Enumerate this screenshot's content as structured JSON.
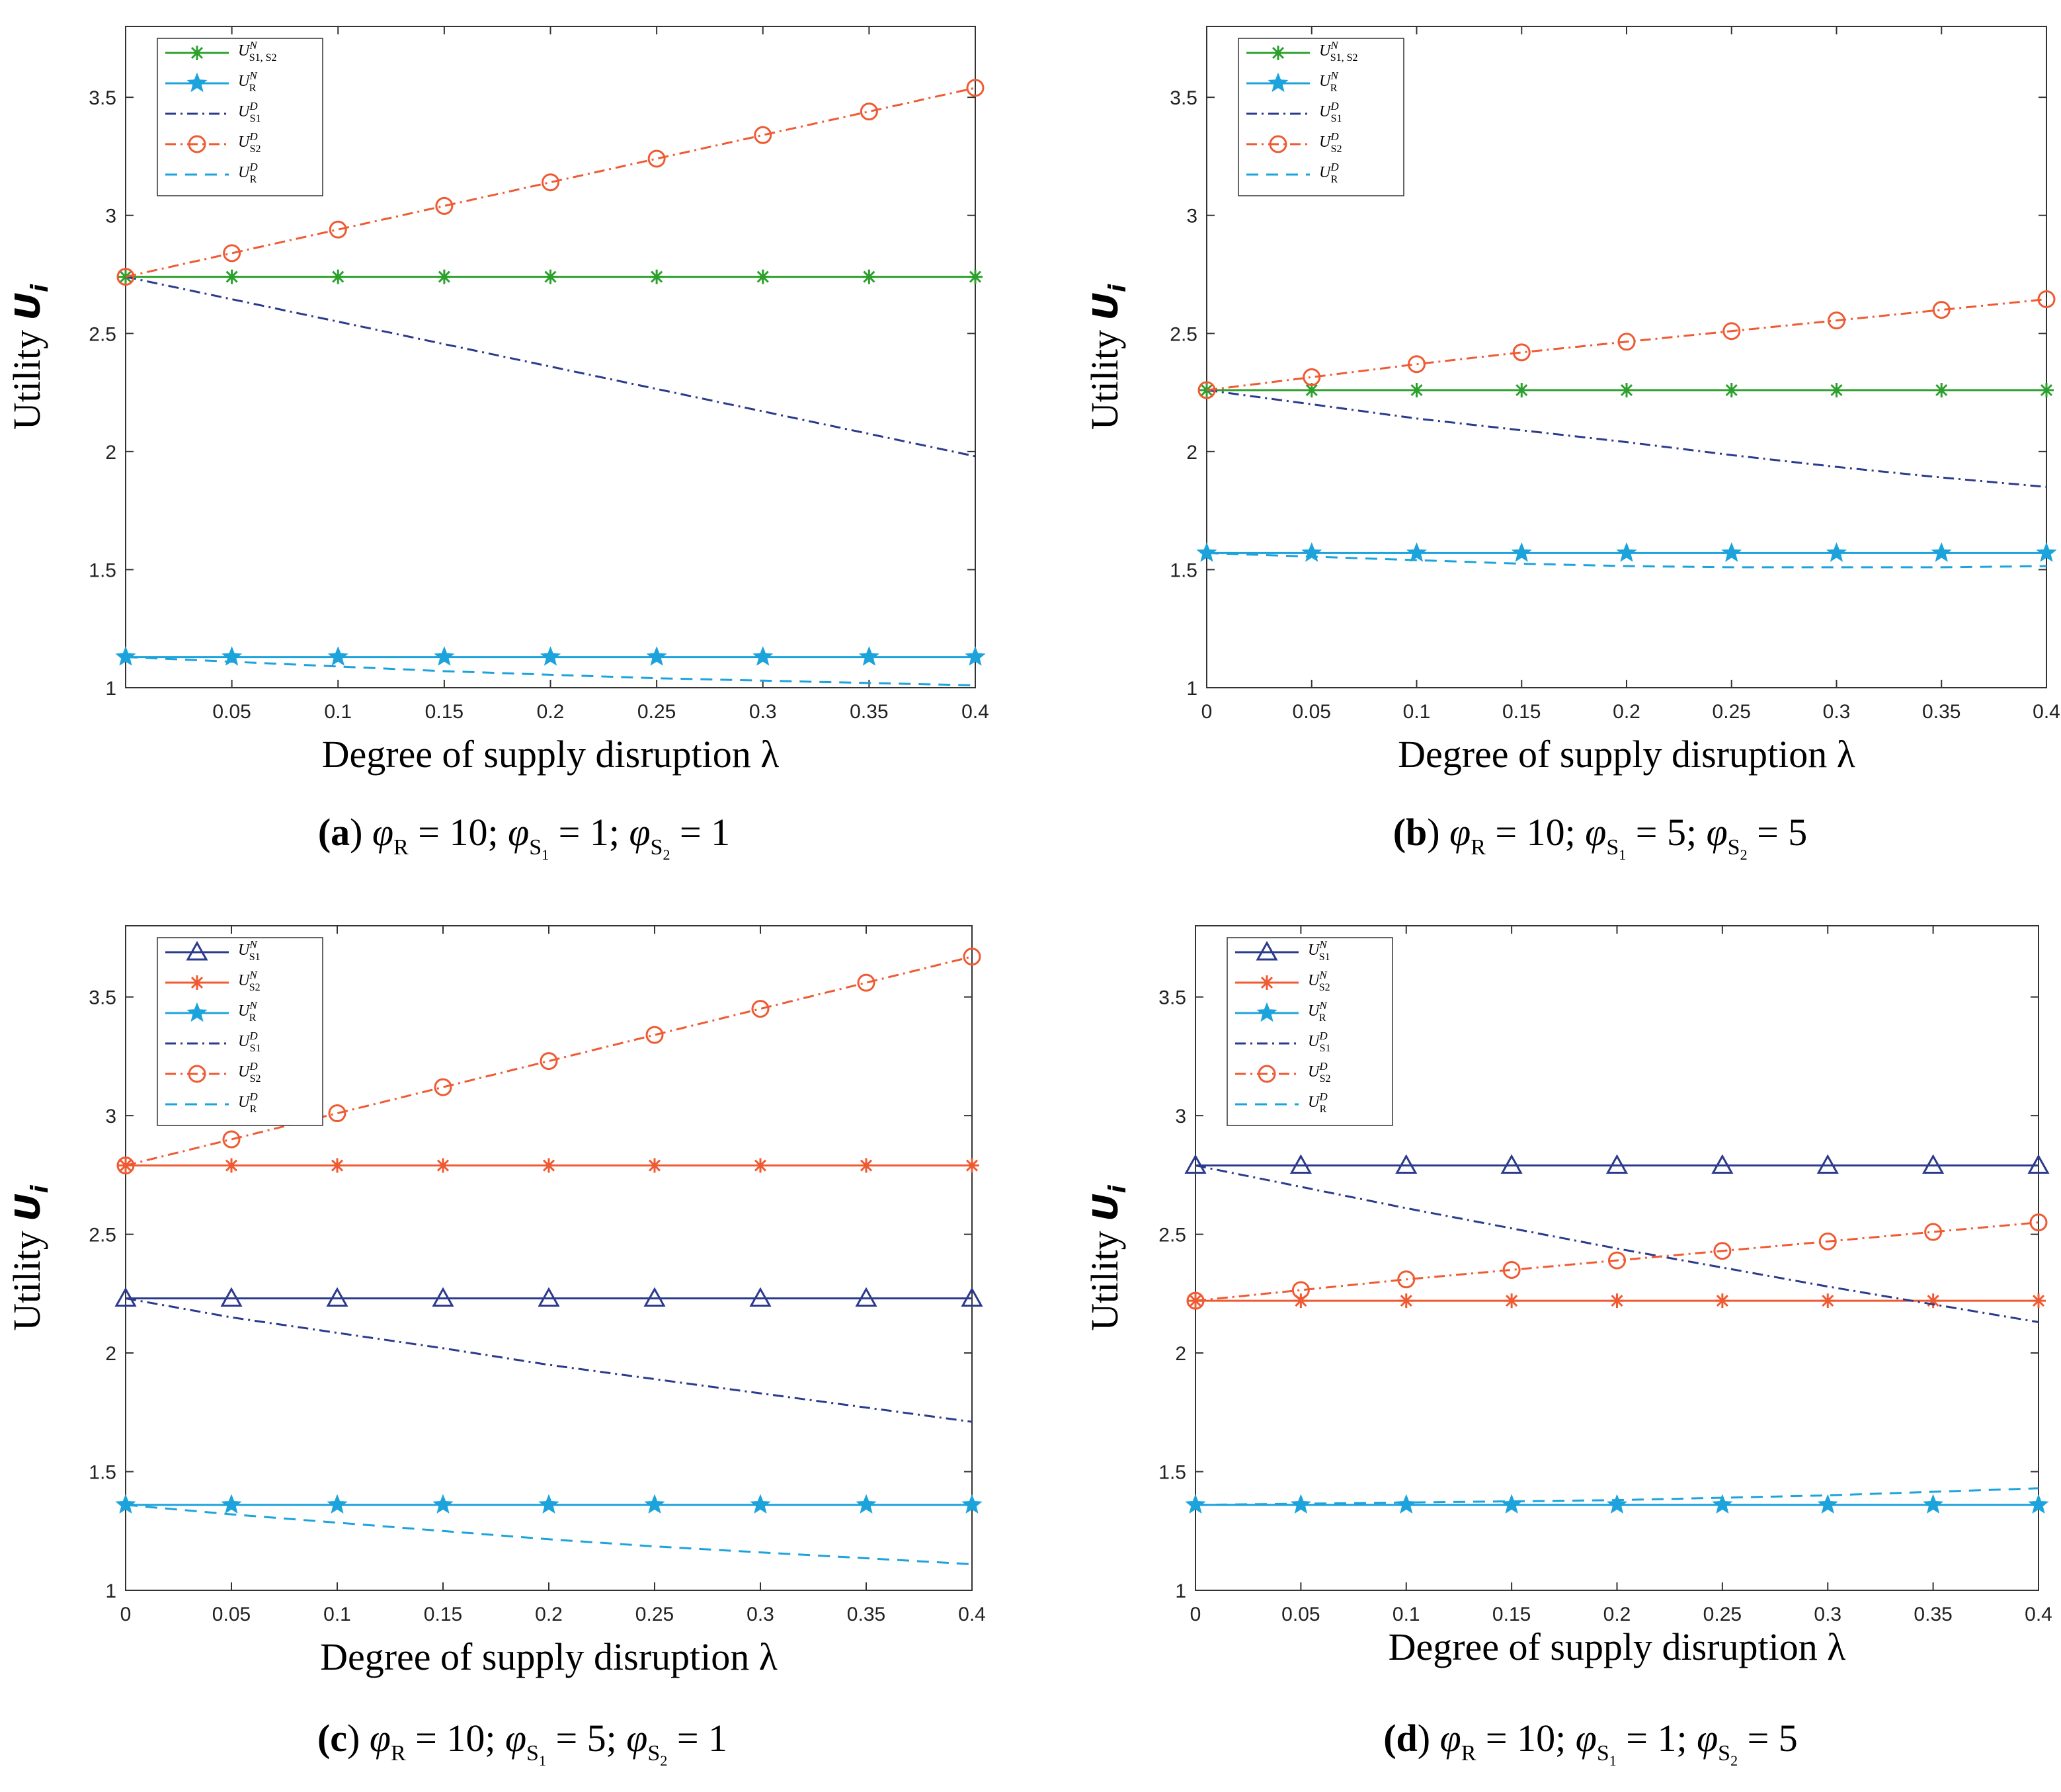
{
  "chart_data": [
    {
      "panel": "a",
      "type": "line",
      "caption": "(a)  φR = 10;  φS1 = 1;  φS2 = 1",
      "caption_parts": {
        "label": "(a)",
        "phiR": "10",
        "phiS1": "1",
        "phiS2": "1"
      },
      "xlabel": "Degree of supply disruption λ",
      "ylabel": "Utility Ui",
      "xlim": [
        0,
        0.4
      ],
      "ylim": [
        1,
        3.8
      ],
      "xticks": [
        "0.05",
        "0.1",
        "0.15",
        "0.2",
        "0.25",
        "0.3",
        "0.35",
        "0.4"
      ],
      "yticks": [
        "1",
        "1.5",
        "2",
        "2.5",
        "3",
        "3.5"
      ],
      "legend_position": "top-left",
      "x": [
        0,
        0.05,
        0.1,
        0.15,
        0.2,
        0.25,
        0.3,
        0.35,
        0.4
      ],
      "series": [
        {
          "name": "U_{S1}^N, U_{S2}^N",
          "label_main": "U",
          "label_sup": "N",
          "label_sub": "S1, S2",
          "color": "#2ca02c",
          "style": "solid",
          "marker": "asterisk",
          "values": [
            2.74,
            2.74,
            2.74,
            2.74,
            2.74,
            2.74,
            2.74,
            2.74,
            2.74
          ]
        },
        {
          "name": "U_R^N",
          "label_main": "U",
          "label_sup": "N",
          "label_sub": "R",
          "color": "#1ca3dc",
          "style": "solid",
          "marker": "star",
          "values": [
            1.13,
            1.13,
            1.13,
            1.13,
            1.13,
            1.13,
            1.13,
            1.13,
            1.13
          ]
        },
        {
          "name": "U_{S1}^D",
          "label_main": "U",
          "label_sup": "D",
          "label_sub": "S1",
          "color": "#2b3a8c",
          "style": "dashdot",
          "marker": "none",
          "values": [
            2.74,
            2.645,
            2.55,
            2.455,
            2.36,
            2.265,
            2.17,
            2.075,
            1.98
          ]
        },
        {
          "name": "U_{S2}^D",
          "label_main": "U",
          "label_sup": "D",
          "label_sub": "S2",
          "color": "#ef5a32",
          "style": "dashdot",
          "marker": "circle",
          "values": [
            2.74,
            2.84,
            2.94,
            3.04,
            3.14,
            3.24,
            3.34,
            3.44,
            3.54
          ]
        },
        {
          "name": "U_R^D",
          "label_main": "U",
          "label_sup": "D",
          "label_sub": "R",
          "color": "#1ca3dc",
          "style": "dashed",
          "marker": "none",
          "values": [
            1.13,
            1.11,
            1.09,
            1.07,
            1.055,
            1.04,
            1.03,
            1.02,
            1.01
          ]
        }
      ]
    },
    {
      "panel": "b",
      "type": "line",
      "caption": "(b)  φR = 10;  φS1 = 5;  φS2 = 5",
      "caption_parts": {
        "label": "(b)",
        "phiR": "10",
        "phiS1": "5",
        "phiS2": "5"
      },
      "xlabel": "Degree of supply disruption λ",
      "ylabel": "Utility Ui",
      "xlim": [
        0,
        0.4
      ],
      "ylim": [
        1,
        3.8
      ],
      "xticks": [
        "0",
        "0.05",
        "0.1",
        "0.15",
        "0.2",
        "0.25",
        "0.3",
        "0.35",
        "0.4"
      ],
      "yticks": [
        "1",
        "1.5",
        "2",
        "2.5",
        "3",
        "3.5"
      ],
      "legend_position": "top-left",
      "x": [
        0,
        0.05,
        0.1,
        0.15,
        0.2,
        0.25,
        0.3,
        0.35,
        0.4
      ],
      "series": [
        {
          "name": "U_{S1}^N, U_{S2}^N",
          "label_main": "U",
          "label_sup": "N",
          "label_sub": "S1, S2",
          "color": "#2ca02c",
          "style": "solid",
          "marker": "asterisk",
          "values": [
            2.26,
            2.26,
            2.26,
            2.26,
            2.26,
            2.26,
            2.26,
            2.26,
            2.26
          ]
        },
        {
          "name": "U_R^N",
          "label_main": "U",
          "label_sup": "N",
          "label_sub": "R",
          "color": "#1ca3dc",
          "style": "solid",
          "marker": "star",
          "values": [
            1.57,
            1.57,
            1.57,
            1.57,
            1.57,
            1.57,
            1.57,
            1.57,
            1.57
          ]
        },
        {
          "name": "U_{S1}^D",
          "label_main": "U",
          "label_sup": "D",
          "label_sub": "S1",
          "color": "#2b3a8c",
          "style": "dashdot",
          "marker": "none",
          "values": [
            2.26,
            2.2,
            2.14,
            2.09,
            2.04,
            1.985,
            1.935,
            1.89,
            1.85
          ]
        },
        {
          "name": "U_{S2}^D",
          "label_main": "U",
          "label_sup": "D",
          "label_sub": "S2",
          "color": "#ef5a32",
          "style": "dashdot",
          "marker": "circle",
          "values": [
            2.26,
            2.315,
            2.37,
            2.42,
            2.465,
            2.51,
            2.555,
            2.6,
            2.645
          ]
        },
        {
          "name": "U_R^D",
          "label_main": "U",
          "label_sup": "D",
          "label_sub": "R",
          "color": "#1ca3dc",
          "style": "dashed",
          "marker": "none",
          "values": [
            1.57,
            1.555,
            1.54,
            1.525,
            1.515,
            1.51,
            1.51,
            1.51,
            1.515
          ]
        }
      ]
    },
    {
      "panel": "c",
      "type": "line",
      "caption": "(c)  φR = 10;  φS1 = 5;  φS2 = 1",
      "caption_parts": {
        "label": "(c)",
        "phiR": "10",
        "phiS1": "5",
        "phiS2": "1"
      },
      "xlabel": "Degree of supply disruption λ",
      "ylabel": "Utility Ui",
      "xlim": [
        0,
        0.4
      ],
      "ylim": [
        1,
        3.8
      ],
      "xticks": [
        "0",
        "0.05",
        "0.1",
        "0.15",
        "0.2",
        "0.25",
        "0.3",
        "0.35",
        "0.4"
      ],
      "yticks": [
        "1",
        "1.5",
        "2",
        "2.5",
        "3",
        "3.5"
      ],
      "legend_position": "top-left",
      "x": [
        0,
        0.05,
        0.1,
        0.15,
        0.2,
        0.25,
        0.3,
        0.35,
        0.4
      ],
      "series": [
        {
          "name": "U_{S1}^N",
          "label_main": "U",
          "label_sup": "N",
          "label_sub": "S1",
          "color": "#2b3a8c",
          "style": "solid",
          "marker": "triangle",
          "values": [
            2.23,
            2.23,
            2.23,
            2.23,
            2.23,
            2.23,
            2.23,
            2.23,
            2.23
          ]
        },
        {
          "name": "U_{S2}^N",
          "label_main": "U",
          "label_sup": "N",
          "label_sub": "S2",
          "color": "#ef5a32",
          "style": "solid",
          "marker": "asterisk",
          "values": [
            2.79,
            2.79,
            2.79,
            2.79,
            2.79,
            2.79,
            2.79,
            2.79,
            2.79
          ]
        },
        {
          "name": "U_R^N",
          "label_main": "U",
          "label_sup": "N",
          "label_sub": "R",
          "color": "#1ca3dc",
          "style": "solid",
          "marker": "star",
          "values": [
            1.36,
            1.36,
            1.36,
            1.36,
            1.36,
            1.36,
            1.36,
            1.36,
            1.36
          ]
        },
        {
          "name": "U_{S1}^D",
          "label_main": "U",
          "label_sup": "D",
          "label_sub": "S1",
          "color": "#2b3a8c",
          "style": "dashdot",
          "marker": "none",
          "values": [
            2.23,
            2.15,
            2.085,
            2.02,
            1.95,
            1.89,
            1.83,
            1.77,
            1.71
          ]
        },
        {
          "name": "U_{S2}^D",
          "label_main": "U",
          "label_sup": "D",
          "label_sub": "S2",
          "color": "#ef5a32",
          "style": "dashdot",
          "marker": "circle",
          "values": [
            2.79,
            2.9,
            3.01,
            3.12,
            3.23,
            3.34,
            3.45,
            3.56,
            3.67
          ]
        },
        {
          "name": "U_R^D",
          "label_main": "U",
          "label_sup": "D",
          "label_sub": "R",
          "color": "#1ca3dc",
          "style": "dashed",
          "marker": "none",
          "values": [
            1.36,
            1.32,
            1.285,
            1.25,
            1.215,
            1.185,
            1.16,
            1.135,
            1.11
          ]
        }
      ]
    },
    {
      "panel": "d",
      "type": "line",
      "caption": "(d)  φR = 10;  φS1 = 1;  φS2 = 5",
      "caption_parts": {
        "label": "(d)",
        "phiR": "10",
        "phiS1": "1",
        "phiS2": "5"
      },
      "xlabel": "Degree of supply disruption λ",
      "ylabel": "Utility Ui",
      "xlim": [
        0,
        0.4
      ],
      "ylim": [
        1,
        3.8
      ],
      "xticks": [
        "0",
        "0.05",
        "0.1",
        "0.15",
        "0.2",
        "0.25",
        "0.3",
        "0.35",
        "0.4"
      ],
      "yticks": [
        "1",
        "1.5",
        "2",
        "2.5",
        "3",
        "3.5"
      ],
      "legend_position": "top-left",
      "x": [
        0,
        0.05,
        0.1,
        0.15,
        0.2,
        0.25,
        0.3,
        0.35,
        0.4
      ],
      "series": [
        {
          "name": "U_{S1}^N",
          "label_main": "U",
          "label_sup": "N",
          "label_sub": "S1",
          "color": "#2b3a8c",
          "style": "solid",
          "marker": "triangle",
          "values": [
            2.79,
            2.79,
            2.79,
            2.79,
            2.79,
            2.79,
            2.79,
            2.79,
            2.79
          ]
        },
        {
          "name": "U_{S2}^N",
          "label_main": "U",
          "label_sup": "N",
          "label_sub": "S2",
          "color": "#ef5a32",
          "style": "solid",
          "marker": "asterisk",
          "values": [
            2.22,
            2.22,
            2.22,
            2.22,
            2.22,
            2.22,
            2.22,
            2.22,
            2.22
          ]
        },
        {
          "name": "U_R^N",
          "label_main": "U",
          "label_sup": "N",
          "label_sub": "R",
          "color": "#1ca3dc",
          "style": "solid",
          "marker": "star",
          "values": [
            1.36,
            1.36,
            1.36,
            1.36,
            1.36,
            1.36,
            1.36,
            1.36,
            1.36
          ]
        },
        {
          "name": "U_{S1}^D",
          "label_main": "U",
          "label_sup": "D",
          "label_sub": "S1",
          "color": "#2b3a8c",
          "style": "dashdot",
          "marker": "none",
          "values": [
            2.79,
            2.7,
            2.61,
            2.525,
            2.44,
            2.36,
            2.28,
            2.205,
            2.13
          ]
        },
        {
          "name": "U_{S2}^D",
          "label_main": "U",
          "label_sup": "D",
          "label_sub": "S2",
          "color": "#ef5a32",
          "style": "dashdot",
          "marker": "circle",
          "values": [
            2.22,
            2.265,
            2.31,
            2.35,
            2.39,
            2.43,
            2.47,
            2.51,
            2.55
          ]
        },
        {
          "name": "U_R^D",
          "label_main": "U",
          "label_sup": "D",
          "label_sub": "R",
          "color": "#1ca3dc",
          "style": "dashed",
          "marker": "none",
          "values": [
            1.36,
            1.365,
            1.37,
            1.375,
            1.38,
            1.39,
            1.4,
            1.415,
            1.43
          ]
        }
      ]
    }
  ]
}
